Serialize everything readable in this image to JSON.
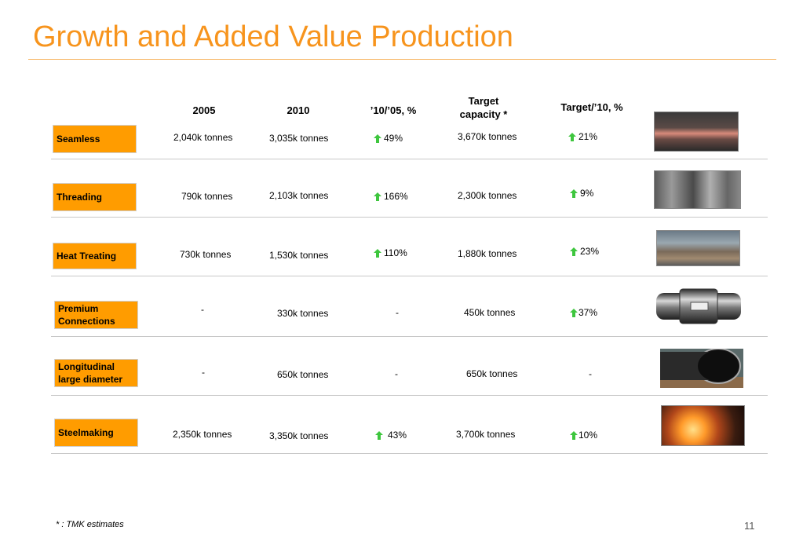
{
  "title": "Growth and Added Value Production",
  "headers": {
    "y2005": "2005",
    "y2010": "2010",
    "growth": "’10/’05, %",
    "target_line1": "Target",
    "target_line2": "capacity *",
    "target_vs_10": "Target/’10, %"
  },
  "rows": [
    {
      "label": "Seamless",
      "v2005": "2,040k tonnes",
      "v2010": "3,035k tonnes",
      "growth": "49%",
      "target": "3,670k tonnes",
      "target_vs_10": "21%"
    },
    {
      "label": "Threading",
      "v2005": "790k tonnes",
      "v2010": "2,103k tonnes",
      "growth": "166%",
      "target": "2,300k tonnes",
      "target_vs_10": "9%"
    },
    {
      "label": "Heat Treating",
      "v2005": "730k tonnes",
      "v2010": "1,530k tonnes",
      "growth": "110%",
      "target": "1,880k tonnes",
      "target_vs_10": "23%"
    },
    {
      "label_line1": "Premium",
      "label_line2": "Connections",
      "v2005": "-",
      "v2010": "330k tonnes",
      "growth": "-",
      "target": "450k tonnes",
      "target_vs_10": "37%"
    },
    {
      "label_line1": "Longitudinal",
      "label_line2": "large diameter",
      "v2005": "-",
      "v2010": "650k tonnes",
      "growth": "-",
      "target": "650k tonnes",
      "target_vs_10": "-"
    },
    {
      "label": "Steelmaking",
      "v2005": "2,350k tonnes",
      "v2010": "3,350k tonnes",
      "growth": "43%",
      "target": "3,700k tonnes",
      "target_vs_10": "10%"
    }
  ],
  "colors": {
    "accent": "#f7941d",
    "category_bg": "#ff9c00",
    "arrow": "#3ec63e"
  },
  "icons": {
    "arrow": "green-up-arrow-icon"
  },
  "footnote": "* : TMK estimates",
  "page_number": "11"
}
